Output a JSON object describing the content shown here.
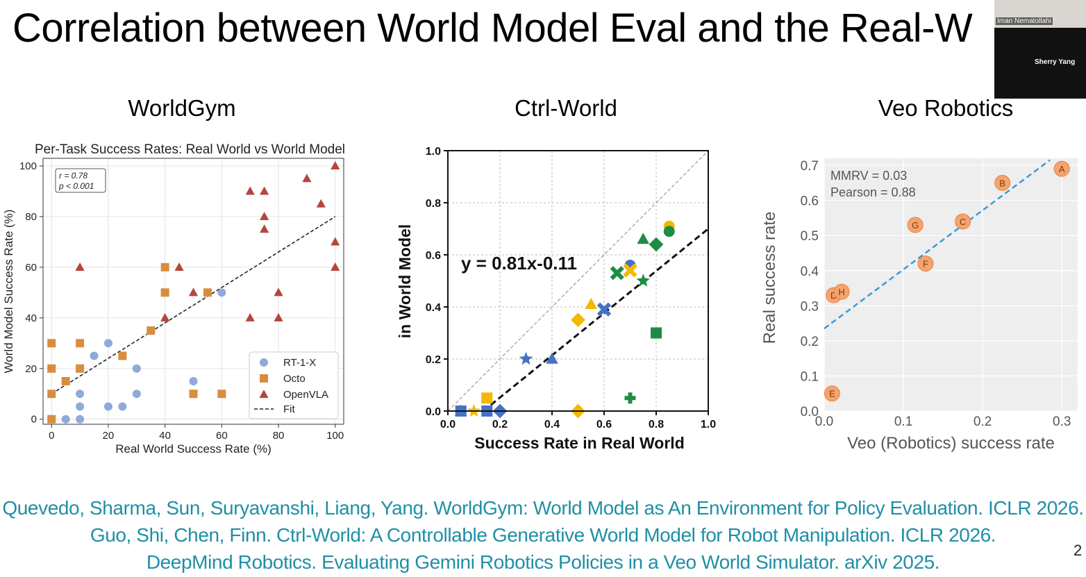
{
  "slide_title": "Correlation between World Model Eval and the Real-W",
  "panel_titles": [
    "WorldGym",
    "Ctrl-World",
    "Veo Robotics"
  ],
  "references": [
    "Quevedo, Sharma, Sun, Suryavanshi, Liang, Yang. WorldGym: World Model as An Environment for Policy Evaluation. ICLR 2026.",
    "Guo, Shi, Chen, Finn. Ctrl-World: A Controllable Generative World Model for Robot Manipulation. ICLR 2026.",
    "DeepMind Robotics. Evaluating Gemini Robotics Policies in a Veo World Simulator. arXiv 2025."
  ],
  "video_call": {
    "participant_1": "Iman Nematollahi",
    "participant_2": "Sherry Yang"
  },
  "page_number": "2",
  "chart_data": [
    {
      "type": "scatter",
      "title": "Per-Task Success Rates: Real World vs World Model",
      "xlabel": "Real World Success Rate (%)",
      "ylabel": "World Model Success Rate (%)",
      "xlim": [
        -3,
        103
      ],
      "ylim": [
        -2,
        103
      ],
      "xticks": [
        "0",
        "20",
        "40",
        "60",
        "80",
        "100"
      ],
      "yticks": [
        "0",
        "20",
        "40",
        "60",
        "80",
        "100"
      ],
      "grid": true,
      "legend_position": "lower-right",
      "stats_box": [
        "r = 0.78",
        "p < 0.001"
      ],
      "series": [
        {
          "name": "RT-1-X",
          "marker": "circle",
          "color": "#8eaad8",
          "points": [
            [
              5,
              0
            ],
            [
              10,
              0
            ],
            [
              10,
              5
            ],
            [
              10,
              10
            ],
            [
              15,
              25
            ],
            [
              20,
              5
            ],
            [
              20,
              30
            ],
            [
              25,
              5
            ],
            [
              30,
              10
            ],
            [
              30,
              20
            ],
            [
              50,
              15
            ],
            [
              60,
              50
            ]
          ]
        },
        {
          "name": "Octo",
          "marker": "square",
          "color": "#d98c3f",
          "points": [
            [
              0,
              0
            ],
            [
              0,
              10
            ],
            [
              0,
              20
            ],
            [
              0,
              30
            ],
            [
              5,
              15
            ],
            [
              10,
              20
            ],
            [
              10,
              30
            ],
            [
              25,
              25
            ],
            [
              35,
              35
            ],
            [
              40,
              50
            ],
            [
              40,
              60
            ],
            [
              50,
              10
            ],
            [
              55,
              50
            ],
            [
              60,
              10
            ]
          ]
        },
        {
          "name": "OpenVLA",
          "marker": "triangle",
          "color": "#b5453d",
          "points": [
            [
              10,
              60
            ],
            [
              40,
              40
            ],
            [
              45,
              60
            ],
            [
              50,
              50
            ],
            [
              70,
              40
            ],
            [
              70,
              90
            ],
            [
              75,
              75
            ],
            [
              75,
              80
            ],
            [
              75,
              90
            ],
            [
              80,
              40
            ],
            [
              80,
              50
            ],
            [
              90,
              95
            ],
            [
              95,
              85
            ],
            [
              100,
              60
            ],
            [
              100,
              70
            ],
            [
              100,
              100
            ]
          ]
        }
      ],
      "fit": {
        "name": "Fit",
        "from": [
          0,
          10
        ],
        "to": [
          100,
          80
        ]
      }
    },
    {
      "type": "scatter",
      "title": "",
      "xlabel": "Success Rate in Real World",
      "ylabel": "in World Model",
      "xlim": [
        0,
        1
      ],
      "ylim": [
        0,
        1
      ],
      "xticks": [
        "0.0",
        "0.2",
        "0.4",
        "0.6",
        "0.8",
        "1.0"
      ],
      "yticks": [
        "0.0",
        "0.2",
        "0.4",
        "0.6",
        "0.8",
        "1.0"
      ],
      "grid": true,
      "equation": "y = 0.81x-0.11",
      "fit": {
        "slope": 0.81,
        "intercept": -0.11
      },
      "points": [
        {
          "x": 0.05,
          "y": 0.0,
          "marker": "square",
          "color": "#4472c4"
        },
        {
          "x": 0.05,
          "y": 0.0,
          "marker": "triangle",
          "color": "#4472c4"
        },
        {
          "x": 0.1,
          "y": 0.0,
          "marker": "star",
          "color": "#f5b800"
        },
        {
          "x": 0.15,
          "y": 0.05,
          "marker": "square",
          "color": "#f5b800"
        },
        {
          "x": 0.15,
          "y": 0.0,
          "marker": "square",
          "color": "#4472c4"
        },
        {
          "x": 0.2,
          "y": 0.0,
          "marker": "diamond",
          "color": "#4472c4"
        },
        {
          "x": 0.3,
          "y": 0.2,
          "marker": "star",
          "color": "#4472c4"
        },
        {
          "x": 0.4,
          "y": 0.2,
          "marker": "triangle",
          "color": "#4472c4"
        },
        {
          "x": 0.5,
          "y": 0.0,
          "marker": "diamond",
          "color": "#f5b800"
        },
        {
          "x": 0.5,
          "y": 0.35,
          "marker": "diamond",
          "color": "#f5b800"
        },
        {
          "x": 0.55,
          "y": 0.41,
          "marker": "triangle",
          "color": "#f5b800"
        },
        {
          "x": 0.6,
          "y": 0.39,
          "marker": "x",
          "color": "#4472c4"
        },
        {
          "x": 0.65,
          "y": 0.53,
          "marker": "x",
          "color": "#1e8c45"
        },
        {
          "x": 0.7,
          "y": 0.56,
          "marker": "circle",
          "color": "#4472c4"
        },
        {
          "x": 0.7,
          "y": 0.54,
          "marker": "x",
          "color": "#f5b800"
        },
        {
          "x": 0.7,
          "y": 0.05,
          "marker": "plus",
          "color": "#1e8c45"
        },
        {
          "x": 0.75,
          "y": 0.5,
          "marker": "star",
          "color": "#1e8c45"
        },
        {
          "x": 0.75,
          "y": 0.66,
          "marker": "triangle",
          "color": "#1e8c45"
        },
        {
          "x": 0.8,
          "y": 0.64,
          "marker": "diamond",
          "color": "#1e8c45"
        },
        {
          "x": 0.8,
          "y": 0.3,
          "marker": "square",
          "color": "#1e8c45"
        },
        {
          "x": 0.85,
          "y": 0.71,
          "marker": "circle",
          "color": "#f5b800"
        },
        {
          "x": 0.85,
          "y": 0.69,
          "marker": "circle",
          "color": "#1e8c45"
        }
      ]
    },
    {
      "type": "scatter",
      "title": "",
      "xlabel": "Veo (Robotics) success rate",
      "ylabel": "Real success rate",
      "xlim": [
        0,
        0.32
      ],
      "ylim": [
        0,
        0.72
      ],
      "xticks": [
        "0.0",
        "0.1",
        "0.2",
        "0.3"
      ],
      "yticks": [
        "0.0",
        "0.1",
        "0.2",
        "0.3",
        "0.4",
        "0.5",
        "0.6",
        "0.7"
      ],
      "grid": true,
      "annotations": [
        "MMRV    = 0.03",
        "Pearson = 0.88"
      ],
      "marker_color": "#f4a46c",
      "points": [
        {
          "label": "A",
          "x": 0.3,
          "y": 0.69
        },
        {
          "label": "B",
          "x": 0.225,
          "y": 0.65
        },
        {
          "label": "C",
          "x": 0.175,
          "y": 0.54
        },
        {
          "label": "D",
          "x": 0.012,
          "y": 0.33
        },
        {
          "label": "E",
          "x": 0.01,
          "y": 0.05
        },
        {
          "label": "F",
          "x": 0.128,
          "y": 0.42
        },
        {
          "label": "G",
          "x": 0.115,
          "y": 0.53
        },
        {
          "label": "H",
          "x": 0.022,
          "y": 0.34
        }
      ],
      "fit": {
        "from": [
          0,
          0.235
        ],
        "to": [
          0.285,
          0.715
        ]
      }
    }
  ]
}
